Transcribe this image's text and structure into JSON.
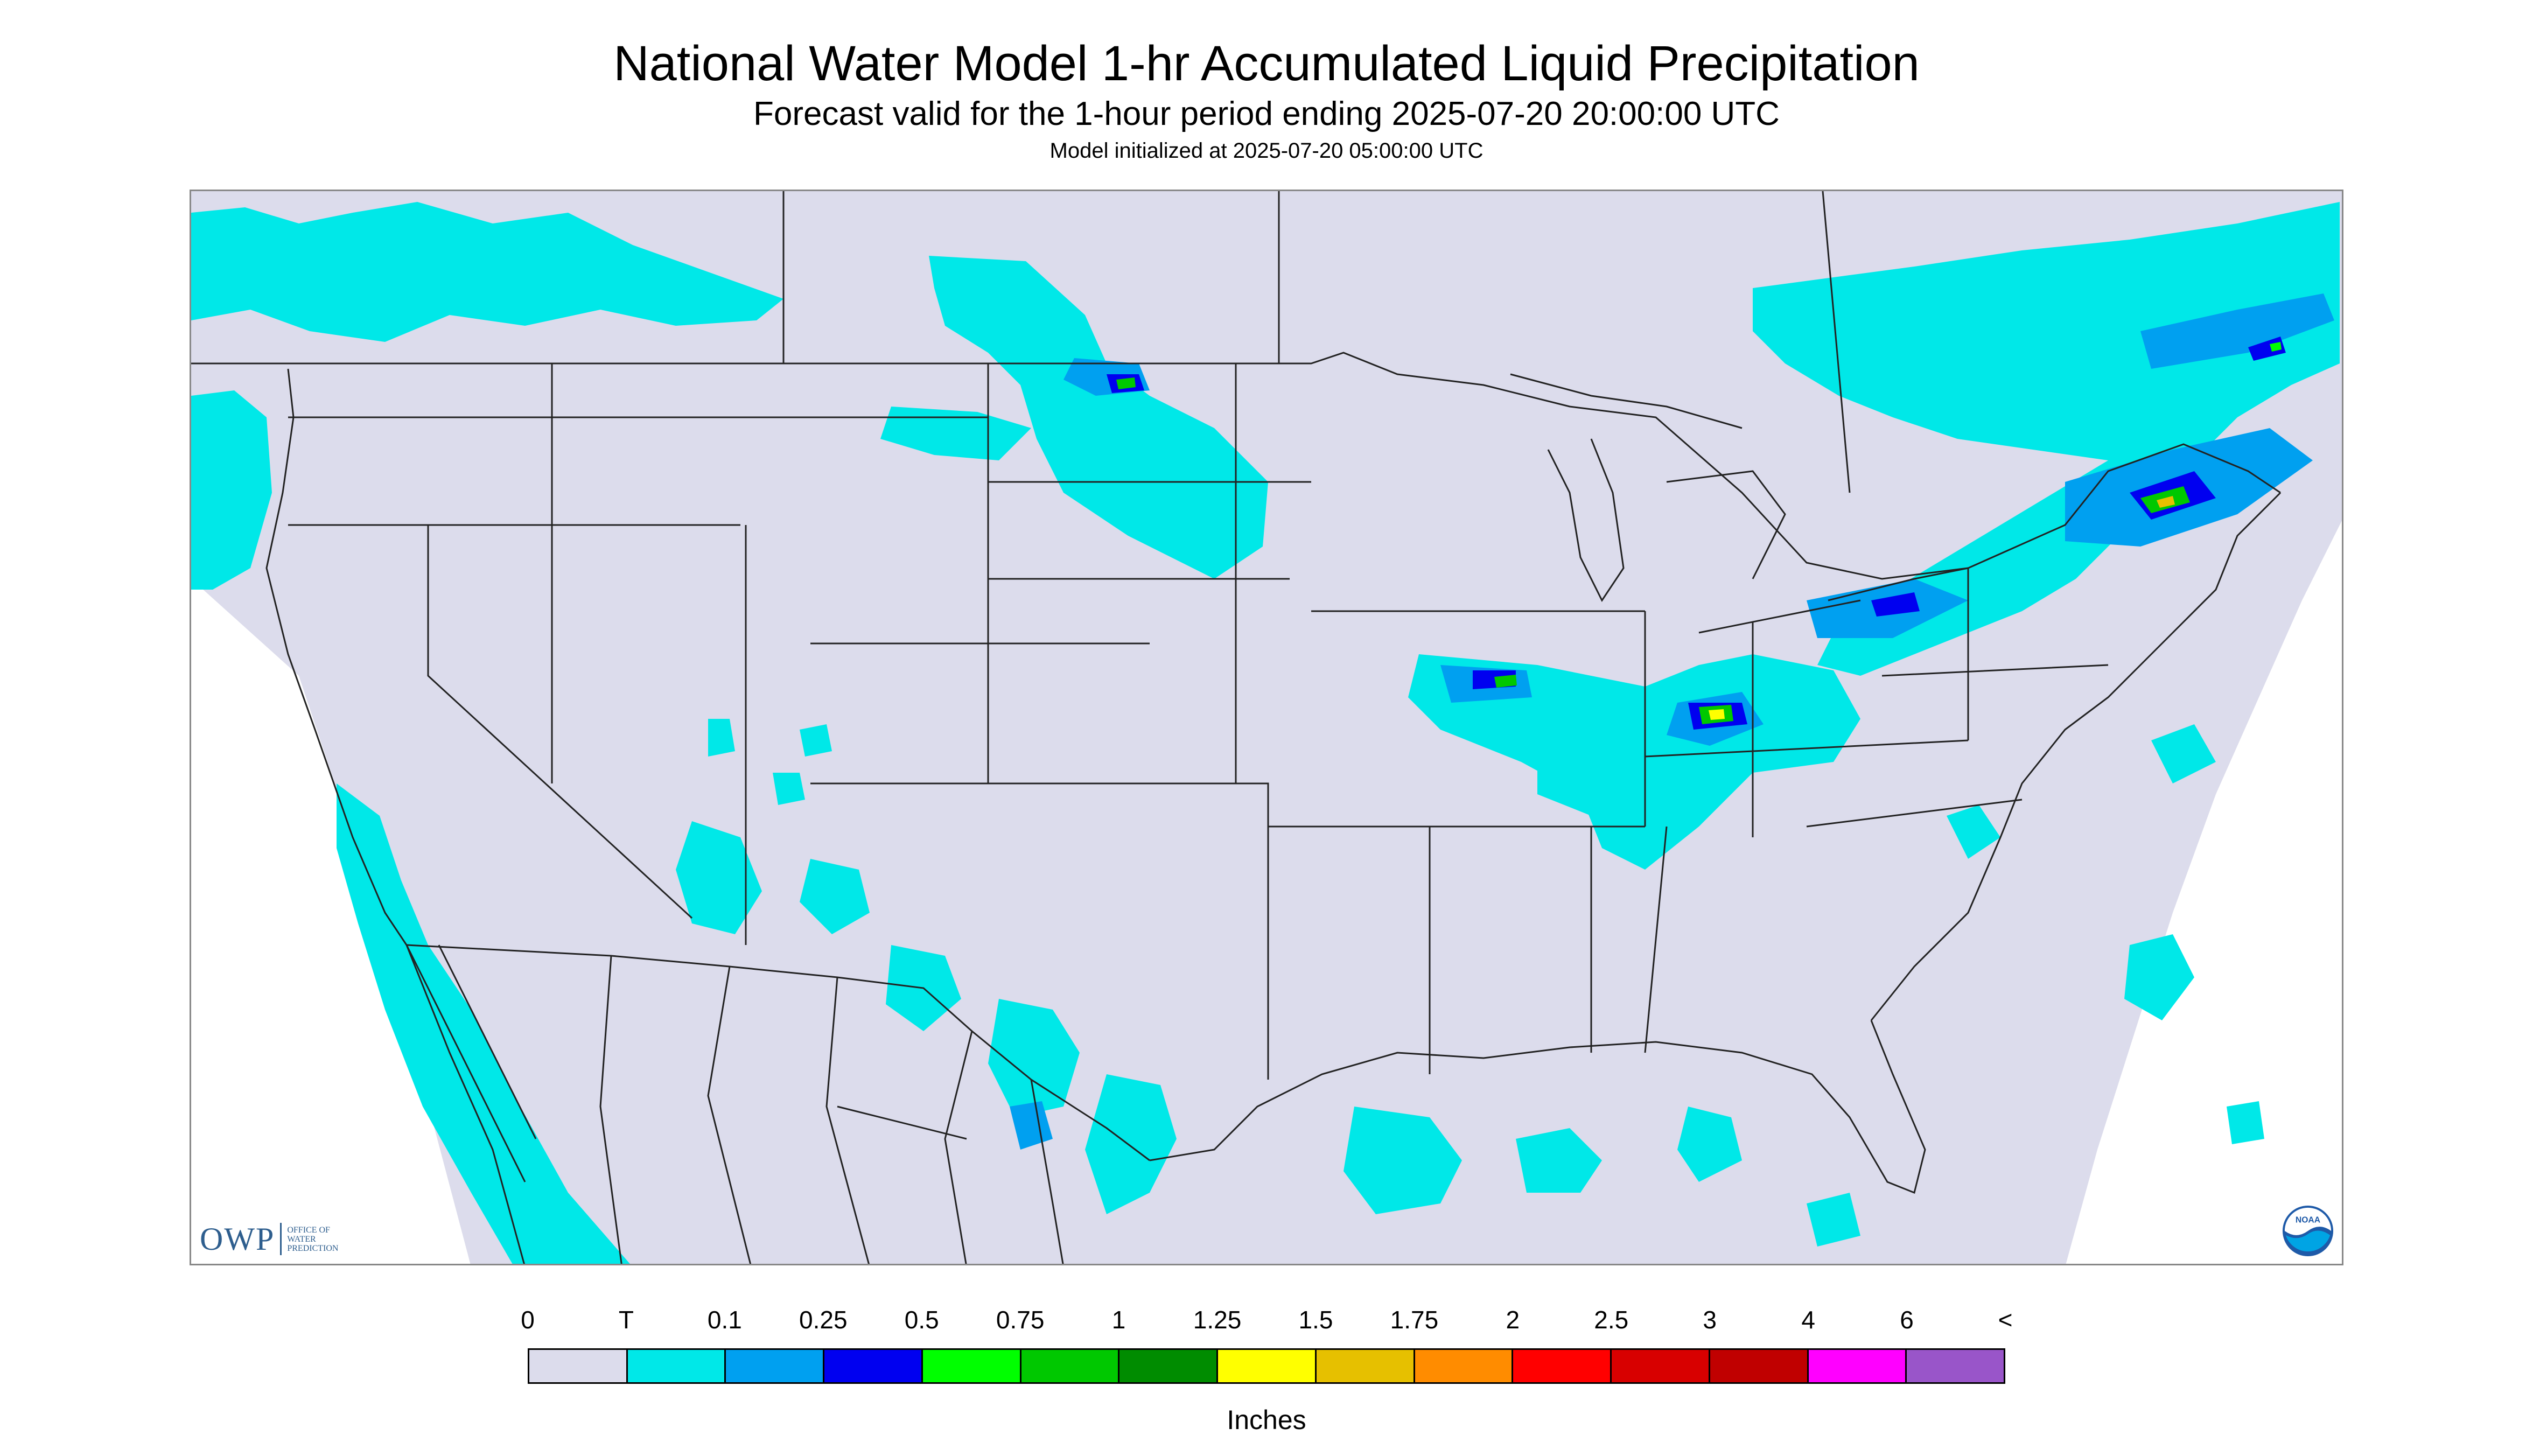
{
  "titles": {
    "main": "National Water Model 1-hr Accumulated Liquid Precipitation",
    "subtitle": "Forecast valid for the 1-hour period ending 2025-07-20 20:00:00 UTC",
    "init": "Model initialized at 2025-07-20 05:00:00 UTC"
  },
  "map": {
    "background_color": "#dcdcec",
    "outside_color": "#ffffff",
    "boundary_color": "#222222",
    "precip_regions": [
      {
        "region": "Pacific Northwest / British Columbia",
        "level": "T"
      },
      {
        "region": "Northern Plains / North Dakota",
        "level": "0.5"
      },
      {
        "region": "Upper Midwest / Iowa-Illinois band",
        "level": "0.75"
      },
      {
        "region": "Ohio Valley / Kentucky",
        "level": "1.25"
      },
      {
        "region": "Northeast / New England",
        "level": "1.25"
      },
      {
        "region": "Quebec / Ontario",
        "level": "0.25"
      },
      {
        "region": "Mexico / Gulf of Mexico",
        "level": "0.25"
      },
      {
        "region": "Baja California / Pacific",
        "level": "T"
      }
    ]
  },
  "logos": {
    "owp_mark": "OWP",
    "owp_text_lines": [
      "OFFICE OF",
      "WATER",
      "PREDICTION"
    ],
    "noaa_text": "NOAA"
  },
  "legend": {
    "labels": [
      "0",
      "T",
      "0.1",
      "0.25",
      "0.5",
      "0.75",
      "1",
      "1.25",
      "1.5",
      "1.75",
      "2",
      "2.5",
      "3",
      "4",
      "6",
      "<"
    ],
    "colors": [
      "#dcdcec",
      "#00e8e8",
      "#00a0f0",
      "#0000f0",
      "#00ff00",
      "#00c800",
      "#008c00",
      "#ffff00",
      "#e6c000",
      "#ff8c00",
      "#ff0000",
      "#d80000",
      "#c00000",
      "#ff00ff",
      "#9955c9"
    ],
    "units": "Inches"
  }
}
